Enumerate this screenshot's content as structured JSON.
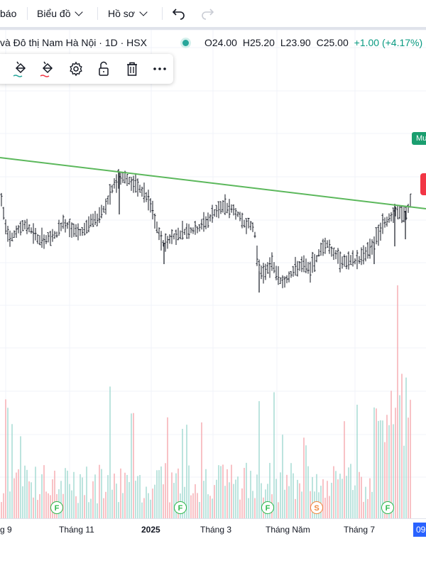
{
  "topbar": {
    "alerts_label": "báo",
    "chart_menu_label": "Biểu đồ",
    "profile_menu_label": "Hồ sơ",
    "undo_icon": "undo-icon",
    "redo_icon": "redo-icon"
  },
  "legend": {
    "symbol_title": "và Đô thị Nam Hà Nội · 1D · HSX",
    "status_color": "#26a69a",
    "open": "O24.00",
    "high": "H25.20",
    "low": "L23.90",
    "close": "C25.00",
    "change": "+1.00 (+4.17%)",
    "change_color": "#089981"
  },
  "drawing_toolbar": {
    "icons": [
      "paint-bucket-icon",
      "paint-bucket-alt-icon",
      "settings-gear-icon",
      "unlock-icon",
      "trash-icon",
      "more-icon"
    ]
  },
  "price_tags": {
    "green_label": "Mu",
    "green_color": "#1a9e6f",
    "red_color": "#f23645"
  },
  "trendline_color": "#5cb85c",
  "xaxis": {
    "labels": [
      "g 9",
      "Tháng 11",
      "2025",
      "Tháng 3",
      "Tháng Năm",
      "Tháng 7",
      "09"
    ]
  },
  "events": [
    {
      "letter": "F",
      "color": "#2eb84c"
    },
    {
      "letter": "F",
      "color": "#2eb84c"
    },
    {
      "letter": "F",
      "color": "#2eb84c"
    },
    {
      "letter": "S",
      "color": "#f0883e"
    },
    {
      "letter": "F",
      "color": "#2eb84c"
    }
  ],
  "chart_data": {
    "type": "ohlc",
    "up_color": "#089981",
    "down_color": "#f23645",
    "candle_color": "#131722",
    "last_bar": {
      "open": 24.0,
      "high": 25.2,
      "low": 23.9,
      "close": 25.0
    }
  }
}
